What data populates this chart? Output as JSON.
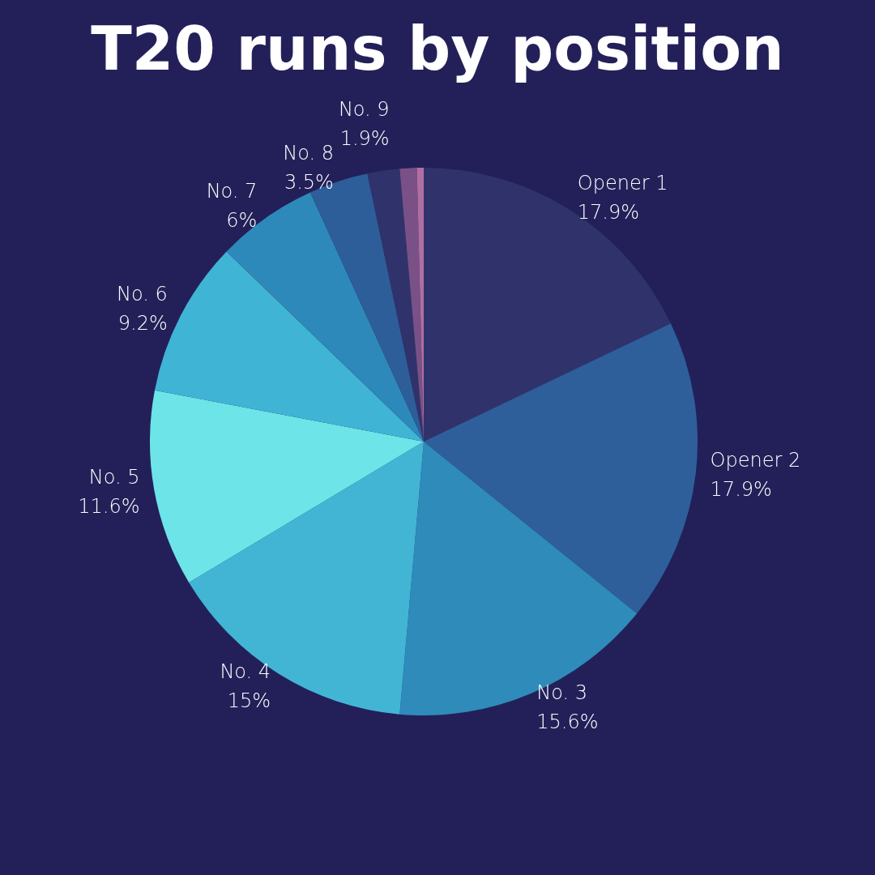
{
  "chart_data": {
    "type": "pie",
    "title": "T20 runs by position",
    "categories": [
      "Opener 1",
      "Opener 2",
      "No. 3",
      "No. 4",
      "No. 5",
      "No. 6",
      "No. 7",
      "No. 8",
      "No. 9",
      null,
      null
    ],
    "values": [
      17.9,
      17.9,
      15.6,
      15,
      11.6,
      9.2,
      6,
      3.5,
      1.9,
      1.0,
      0.4
    ],
    "colors": [
      "#30336b",
      "#2e5f9a",
      "#2e8bba",
      "#42b5d5",
      "#6de4e8",
      "#40b4d4",
      "#2d89b9",
      "#2e5e99",
      "#30336b",
      "#7a5186",
      "#b06fa1"
    ],
    "value_labels": [
      "17.9%",
      "17.9%",
      "15.6%",
      "15%",
      "11.6%",
      "9.2%",
      "6%",
      "3.5%",
      "1.9%",
      null,
      null
    ],
    "legend": false
  }
}
